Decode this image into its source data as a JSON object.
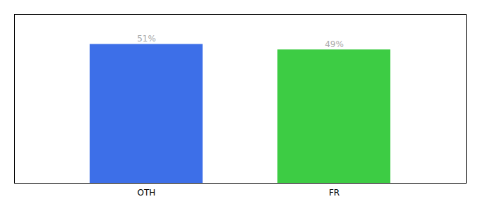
{
  "chart_data": {
    "type": "bar",
    "categories": [
      "OTH",
      "FR"
    ],
    "values": [
      51,
      49
    ],
    "value_labels": [
      "51%",
      "49%"
    ],
    "colors": [
      "#3d6fe8",
      "#3dcc44"
    ],
    "ylim": [
      0,
      62
    ],
    "data_labels": true,
    "tick_labels": "x",
    "grid": false
  }
}
